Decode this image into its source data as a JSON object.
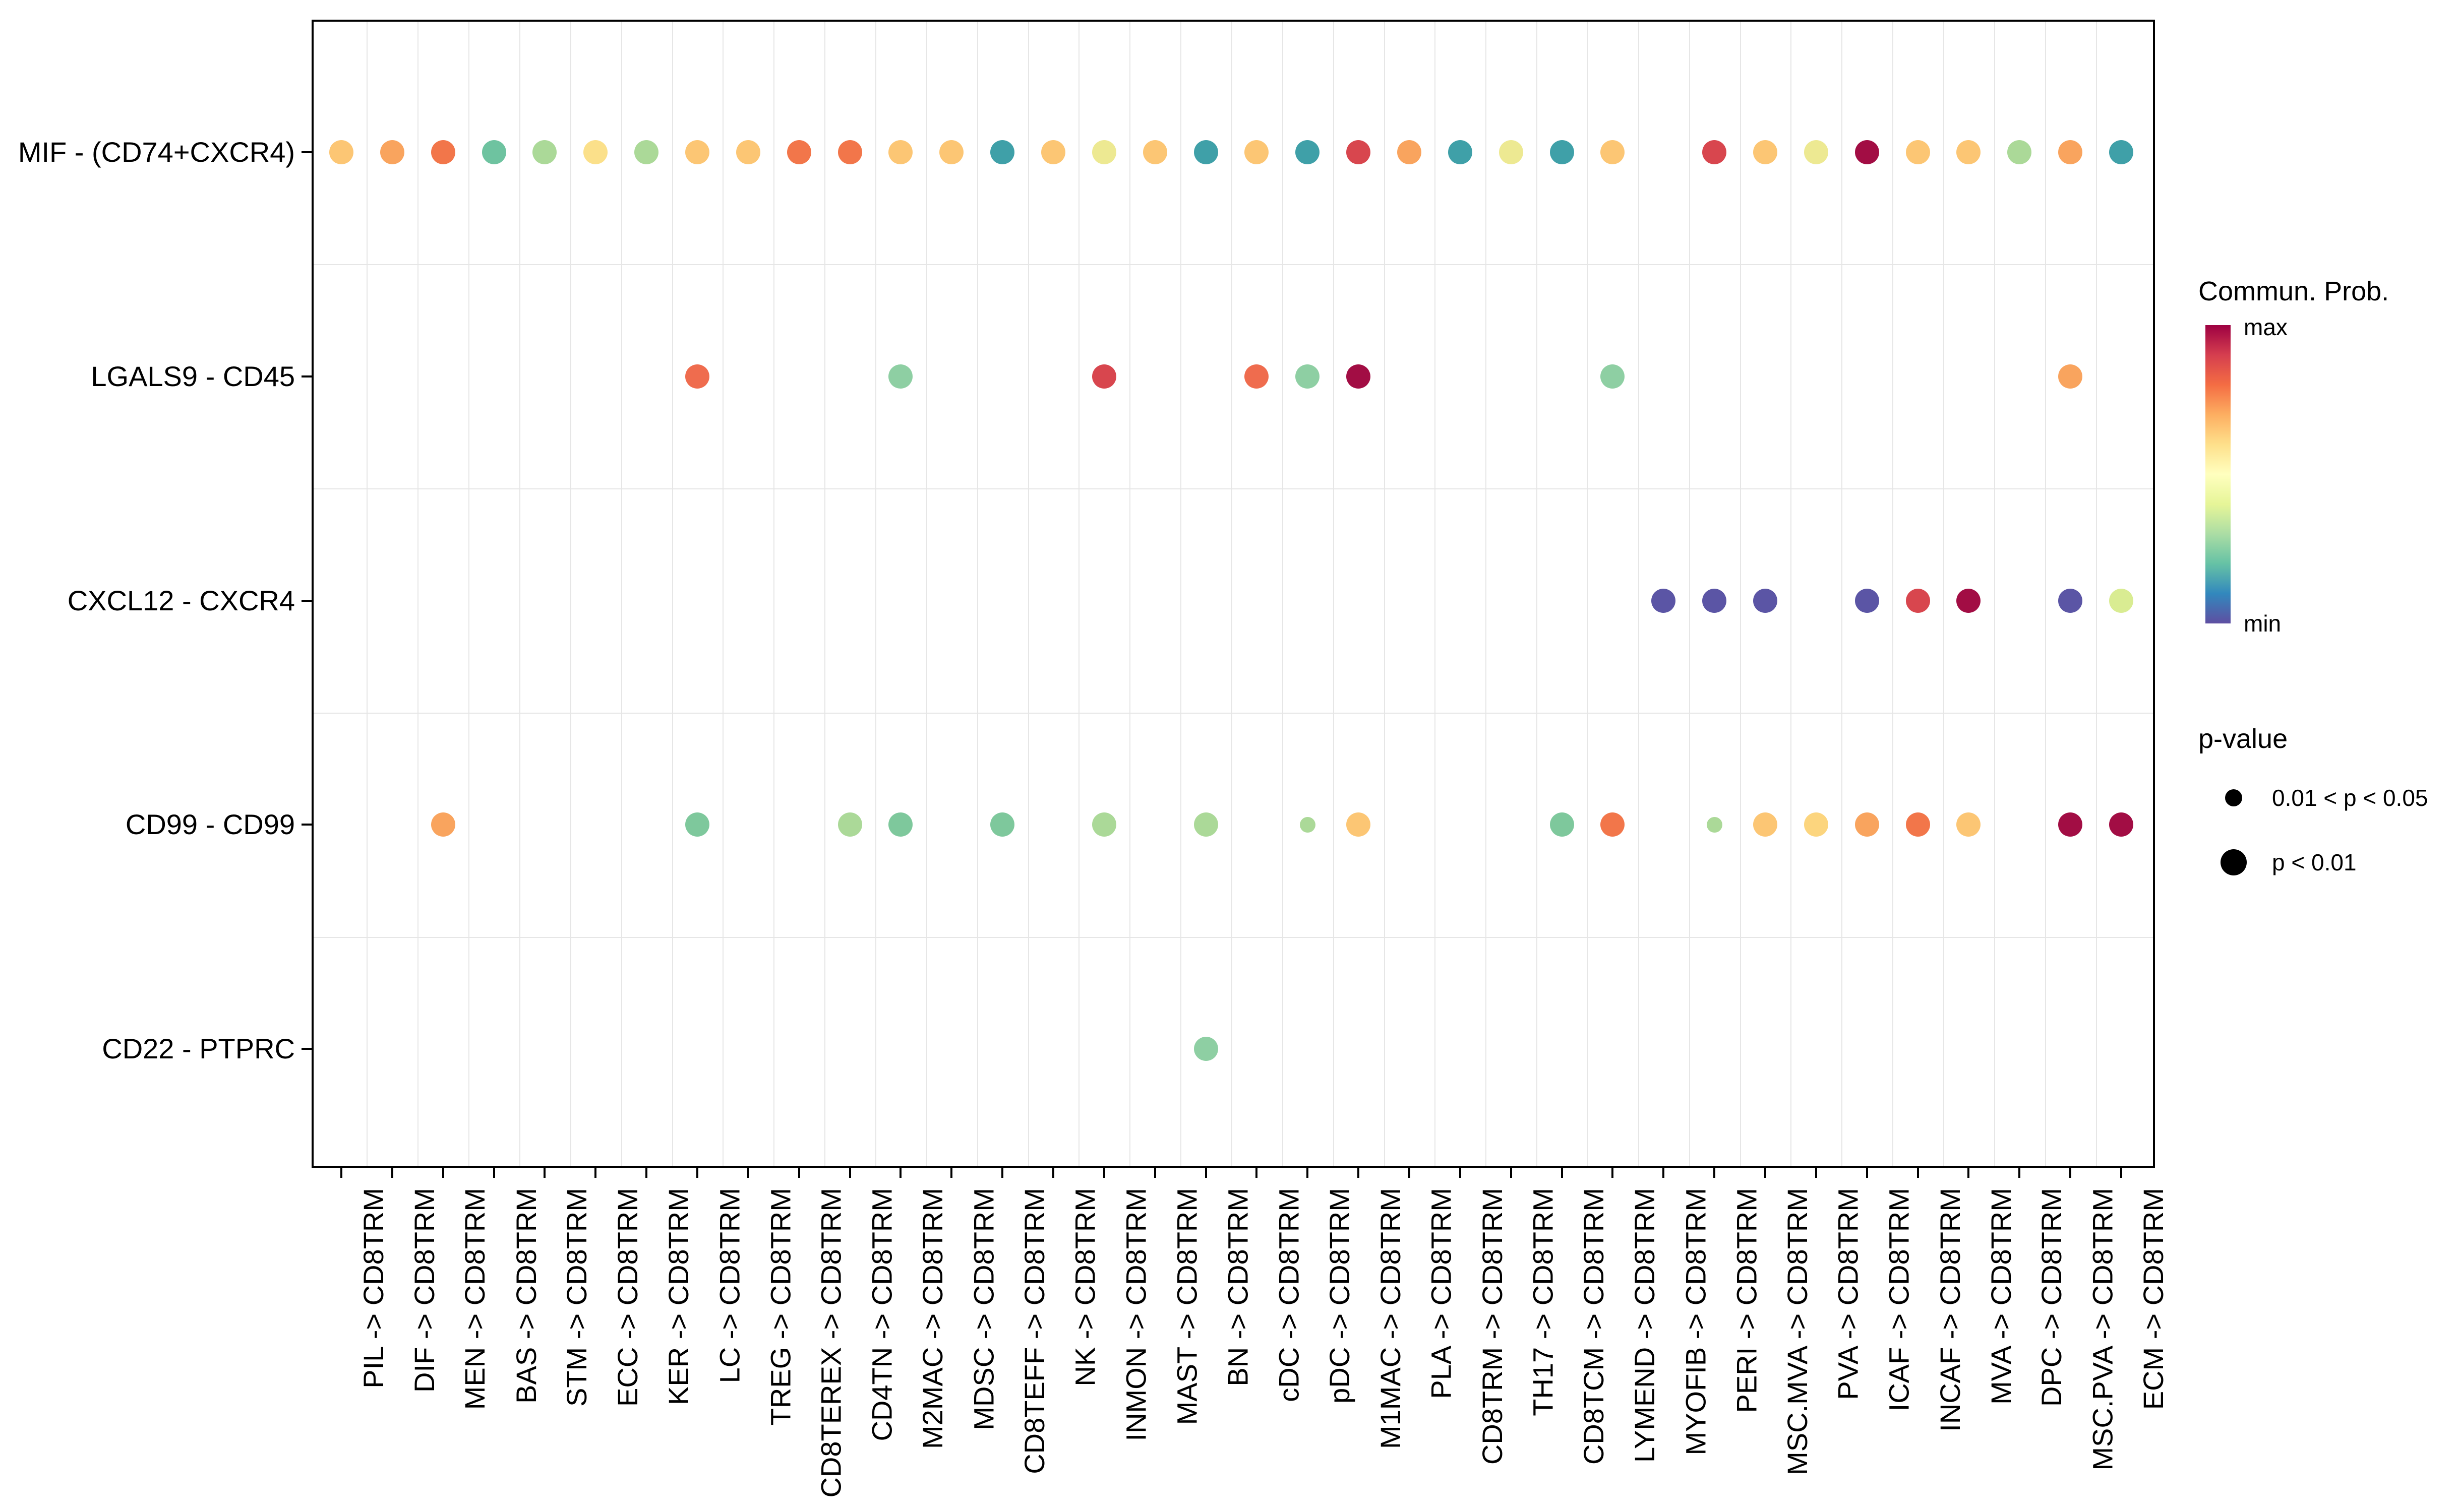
{
  "y_axis": {
    "labels": [
      "MIF - (CD74+CXCR4)",
      "LGALS9 - CD45",
      "CXCL12 - CXCR4",
      "CD99 - CD99",
      "CD22 - PTPRC"
    ]
  },
  "x_axis": {
    "labels": [
      "PIL -> CD8TRM",
      "DIF -> CD8TRM",
      "MEN -> CD8TRM",
      "BAS -> CD8TRM",
      "STM -> CD8TRM",
      "ECC -> CD8TRM",
      "KER -> CD8TRM",
      "LC -> CD8TRM",
      "TREG -> CD8TRM",
      "CD8TEREX -> CD8TRM",
      "CD4TN -> CD8TRM",
      "M2MAC -> CD8TRM",
      "MDSC -> CD8TRM",
      "CD8TEFF -> CD8TRM",
      "NK -> CD8TRM",
      "INMON -> CD8TRM",
      "MAST -> CD8TRM",
      "BN -> CD8TRM",
      "cDC -> CD8TRM",
      "pDC -> CD8TRM",
      "M1MAC -> CD8TRM",
      "PLA -> CD8TRM",
      "CD8TRM -> CD8TRM",
      "TH17 -> CD8TRM",
      "CD8TCM -> CD8TRM",
      "LYMEND -> CD8TRM",
      "MYOFIB -> CD8TRM",
      "PERI -> CD8TRM",
      "MSC.MVA -> CD8TRM",
      "PVA -> CD8TRM",
      "ICAF -> CD8TRM",
      "INCAF -> CD8TRM",
      "MVA -> CD8TRM",
      "DPC -> CD8TRM",
      "MSC.PVA -> CD8TRM",
      "ECM -> CD8TRM"
    ]
  },
  "legend": {
    "colorbar": {
      "title": "Commun. Prob.",
      "max_label": "max",
      "min_label": "min",
      "gradient_top_to_bottom": [
        "#9E0142",
        "#D53E4F",
        "#F46D43",
        "#FDAE61",
        "#FEE08B",
        "#FFFFBF",
        "#E6F598",
        "#ABDDA4",
        "#66C2A5",
        "#3288BD",
        "#5E4FA2"
      ]
    },
    "pvalue": {
      "title": "p-value",
      "items": [
        {
          "label": "0.01 < p < 0.05",
          "size": "small"
        },
        {
          "label": "p < 0.01",
          "size": "large"
        }
      ]
    }
  },
  "palette": {
    "lightorange": "#FCC674",
    "orange": "#F9A45E",
    "darkorange": "#F2764A",
    "coral": "#EF6C4E",
    "red": "#D8464E",
    "maroon": "#A20D44",
    "yellow": "#FBE08A",
    "palegold": "#FCD57E",
    "paleyellow": "#EDE992",
    "yellowgreen": "#D9EC92",
    "lightgreen": "#ABD998",
    "green": "#7EC89C",
    "green2": "#8ECFA3",
    "tealgreen": "#6EC3A0",
    "teal": "#3FA0A8",
    "purple": "#5B55A5"
  },
  "chart_data": {
    "type": "scatter",
    "subtype": "bubble-dotplot",
    "rows": [
      "MIF - (CD74+CXCR4)",
      "LGALS9 - CD45",
      "CXCL12 - CXCR4",
      "CD99 - CD99",
      "CD22 - PTPRC"
    ],
    "columns": [
      "PIL",
      "DIF",
      "MEN",
      "BAS",
      "STM",
      "ECC",
      "KER",
      "LC",
      "TREG",
      "CD8TEREX",
      "CD4TN",
      "M2MAC",
      "MDSC",
      "CD8TEFF",
      "NK",
      "INMON",
      "MAST",
      "BN",
      "cDC",
      "pDC",
      "M1MAC",
      "PLA",
      "CD8TRM",
      "TH17",
      "CD8TCM",
      "LYMEND",
      "MYOFIB",
      "PERI",
      "MSC.MVA",
      "PVA",
      "ICAF",
      "INCAF",
      "MVA",
      "DPC",
      "MSC.PVA",
      "ECM"
    ],
    "column_suffix": " -> CD8TRM",
    "color_encodes": "Commun. Prob. (min..max, Spectral scale)",
    "size_encodes": "p-value",
    "points": [
      {
        "r": 0,
        "c": 0,
        "color": "lightorange",
        "p": "p < 0.01"
      },
      {
        "r": 0,
        "c": 1,
        "color": "orange",
        "p": "p < 0.01"
      },
      {
        "r": 0,
        "c": 2,
        "color": "darkorange",
        "p": "p < 0.01"
      },
      {
        "r": 0,
        "c": 3,
        "color": "tealgreen",
        "p": "p < 0.01"
      },
      {
        "r": 0,
        "c": 4,
        "color": "lightgreen",
        "p": "p < 0.01"
      },
      {
        "r": 0,
        "c": 5,
        "color": "yellow",
        "p": "p < 0.01"
      },
      {
        "r": 0,
        "c": 6,
        "color": "lightgreen",
        "p": "p < 0.01"
      },
      {
        "r": 0,
        "c": 7,
        "color": "lightorange",
        "p": "p < 0.01"
      },
      {
        "r": 0,
        "c": 8,
        "color": "lightorange",
        "p": "p < 0.01"
      },
      {
        "r": 0,
        "c": 9,
        "color": "darkorange",
        "p": "p < 0.01"
      },
      {
        "r": 0,
        "c": 10,
        "color": "darkorange",
        "p": "p < 0.01"
      },
      {
        "r": 0,
        "c": 11,
        "color": "lightorange",
        "p": "p < 0.01"
      },
      {
        "r": 0,
        "c": 12,
        "color": "lightorange",
        "p": "p < 0.01"
      },
      {
        "r": 0,
        "c": 13,
        "color": "teal",
        "p": "p < 0.01"
      },
      {
        "r": 0,
        "c": 14,
        "color": "lightorange",
        "p": "p < 0.01"
      },
      {
        "r": 0,
        "c": 15,
        "color": "paleyellow",
        "p": "p < 0.01"
      },
      {
        "r": 0,
        "c": 16,
        "color": "lightorange",
        "p": "p < 0.01"
      },
      {
        "r": 0,
        "c": 17,
        "color": "teal",
        "p": "p < 0.01"
      },
      {
        "r": 0,
        "c": 18,
        "color": "lightorange",
        "p": "p < 0.01"
      },
      {
        "r": 0,
        "c": 19,
        "color": "teal",
        "p": "p < 0.01"
      },
      {
        "r": 0,
        "c": 20,
        "color": "red",
        "p": "p < 0.01"
      },
      {
        "r": 0,
        "c": 21,
        "color": "orange",
        "p": "p < 0.01"
      },
      {
        "r": 0,
        "c": 22,
        "color": "teal",
        "p": "p < 0.01"
      },
      {
        "r": 0,
        "c": 23,
        "color": "paleyellow",
        "p": "p < 0.01"
      },
      {
        "r": 0,
        "c": 24,
        "color": "teal",
        "p": "p < 0.01"
      },
      {
        "r": 0,
        "c": 25,
        "color": "lightorange",
        "p": "p < 0.01"
      },
      {
        "r": 0,
        "c": 27,
        "color": "red",
        "p": "p < 0.01"
      },
      {
        "r": 0,
        "c": 28,
        "color": "lightorange",
        "p": "p < 0.01"
      },
      {
        "r": 0,
        "c": 29,
        "color": "paleyellow",
        "p": "p < 0.01"
      },
      {
        "r": 0,
        "c": 30,
        "color": "maroon",
        "p": "p < 0.01"
      },
      {
        "r": 0,
        "c": 31,
        "color": "lightorange",
        "p": "p < 0.01"
      },
      {
        "r": 0,
        "c": 32,
        "color": "lightorange",
        "p": "p < 0.01"
      },
      {
        "r": 0,
        "c": 33,
        "color": "lightgreen",
        "p": "p < 0.01"
      },
      {
        "r": 0,
        "c": 34,
        "color": "orange",
        "p": "p < 0.01"
      },
      {
        "r": 0,
        "c": 35,
        "color": "teal",
        "p": "p < 0.01"
      },
      {
        "r": 1,
        "c": 7,
        "color": "coral",
        "p": "p < 0.01"
      },
      {
        "r": 1,
        "c": 11,
        "color": "green2",
        "p": "p < 0.01"
      },
      {
        "r": 1,
        "c": 15,
        "color": "red",
        "p": "p < 0.01"
      },
      {
        "r": 1,
        "c": 18,
        "color": "coral",
        "p": "p < 0.01"
      },
      {
        "r": 1,
        "c": 19,
        "color": "green2",
        "p": "p < 0.01"
      },
      {
        "r": 1,
        "c": 20,
        "color": "maroon",
        "p": "p < 0.01"
      },
      {
        "r": 1,
        "c": 25,
        "color": "green2",
        "p": "p < 0.01"
      },
      {
        "r": 1,
        "c": 34,
        "color": "orange",
        "p": "p < 0.01"
      },
      {
        "r": 2,
        "c": 26,
        "color": "purple",
        "p": "p < 0.01"
      },
      {
        "r": 2,
        "c": 27,
        "color": "purple",
        "p": "p < 0.01"
      },
      {
        "r": 2,
        "c": 28,
        "color": "purple",
        "p": "p < 0.01"
      },
      {
        "r": 2,
        "c": 30,
        "color": "purple",
        "p": "p < 0.01"
      },
      {
        "r": 2,
        "c": 31,
        "color": "red",
        "p": "p < 0.01"
      },
      {
        "r": 2,
        "c": 32,
        "color": "maroon",
        "p": "p < 0.01"
      },
      {
        "r": 2,
        "c": 34,
        "color": "purple",
        "p": "p < 0.01"
      },
      {
        "r": 2,
        "c": 35,
        "color": "yellowgreen",
        "p": "p < 0.01"
      },
      {
        "r": 3,
        "c": 2,
        "color": "orange",
        "p": "p < 0.01"
      },
      {
        "r": 3,
        "c": 7,
        "color": "green",
        "p": "p < 0.01"
      },
      {
        "r": 3,
        "c": 10,
        "color": "lightgreen",
        "p": "p < 0.01"
      },
      {
        "r": 3,
        "c": 11,
        "color": "green",
        "p": "p < 0.01"
      },
      {
        "r": 3,
        "c": 13,
        "color": "green",
        "p": "p < 0.01"
      },
      {
        "r": 3,
        "c": 15,
        "color": "lightgreen",
        "p": "p < 0.01"
      },
      {
        "r": 3,
        "c": 17,
        "color": "lightgreen",
        "p": "p < 0.01"
      },
      {
        "r": 3,
        "c": 19,
        "color": "lightgreen",
        "p": "0.01 < p < 0.05"
      },
      {
        "r": 3,
        "c": 20,
        "color": "lightorange",
        "p": "p < 0.01"
      },
      {
        "r": 3,
        "c": 24,
        "color": "green",
        "p": "p < 0.01"
      },
      {
        "r": 3,
        "c": 25,
        "color": "darkorange",
        "p": "p < 0.01"
      },
      {
        "r": 3,
        "c": 27,
        "color": "lightgreen",
        "p": "0.01 < p < 0.05"
      },
      {
        "r": 3,
        "c": 28,
        "color": "lightorange",
        "p": "p < 0.01"
      },
      {
        "r": 3,
        "c": 29,
        "color": "palegold",
        "p": "p < 0.01"
      },
      {
        "r": 3,
        "c": 30,
        "color": "orange",
        "p": "p < 0.01"
      },
      {
        "r": 3,
        "c": 31,
        "color": "darkorange",
        "p": "p < 0.01"
      },
      {
        "r": 3,
        "c": 32,
        "color": "lightorange",
        "p": "p < 0.01"
      },
      {
        "r": 3,
        "c": 34,
        "color": "maroon",
        "p": "p < 0.01"
      },
      {
        "r": 3,
        "c": 35,
        "color": "maroon",
        "p": "p < 0.01"
      },
      {
        "r": 4,
        "c": 17,
        "color": "green2",
        "p": "p < 0.01"
      }
    ]
  }
}
